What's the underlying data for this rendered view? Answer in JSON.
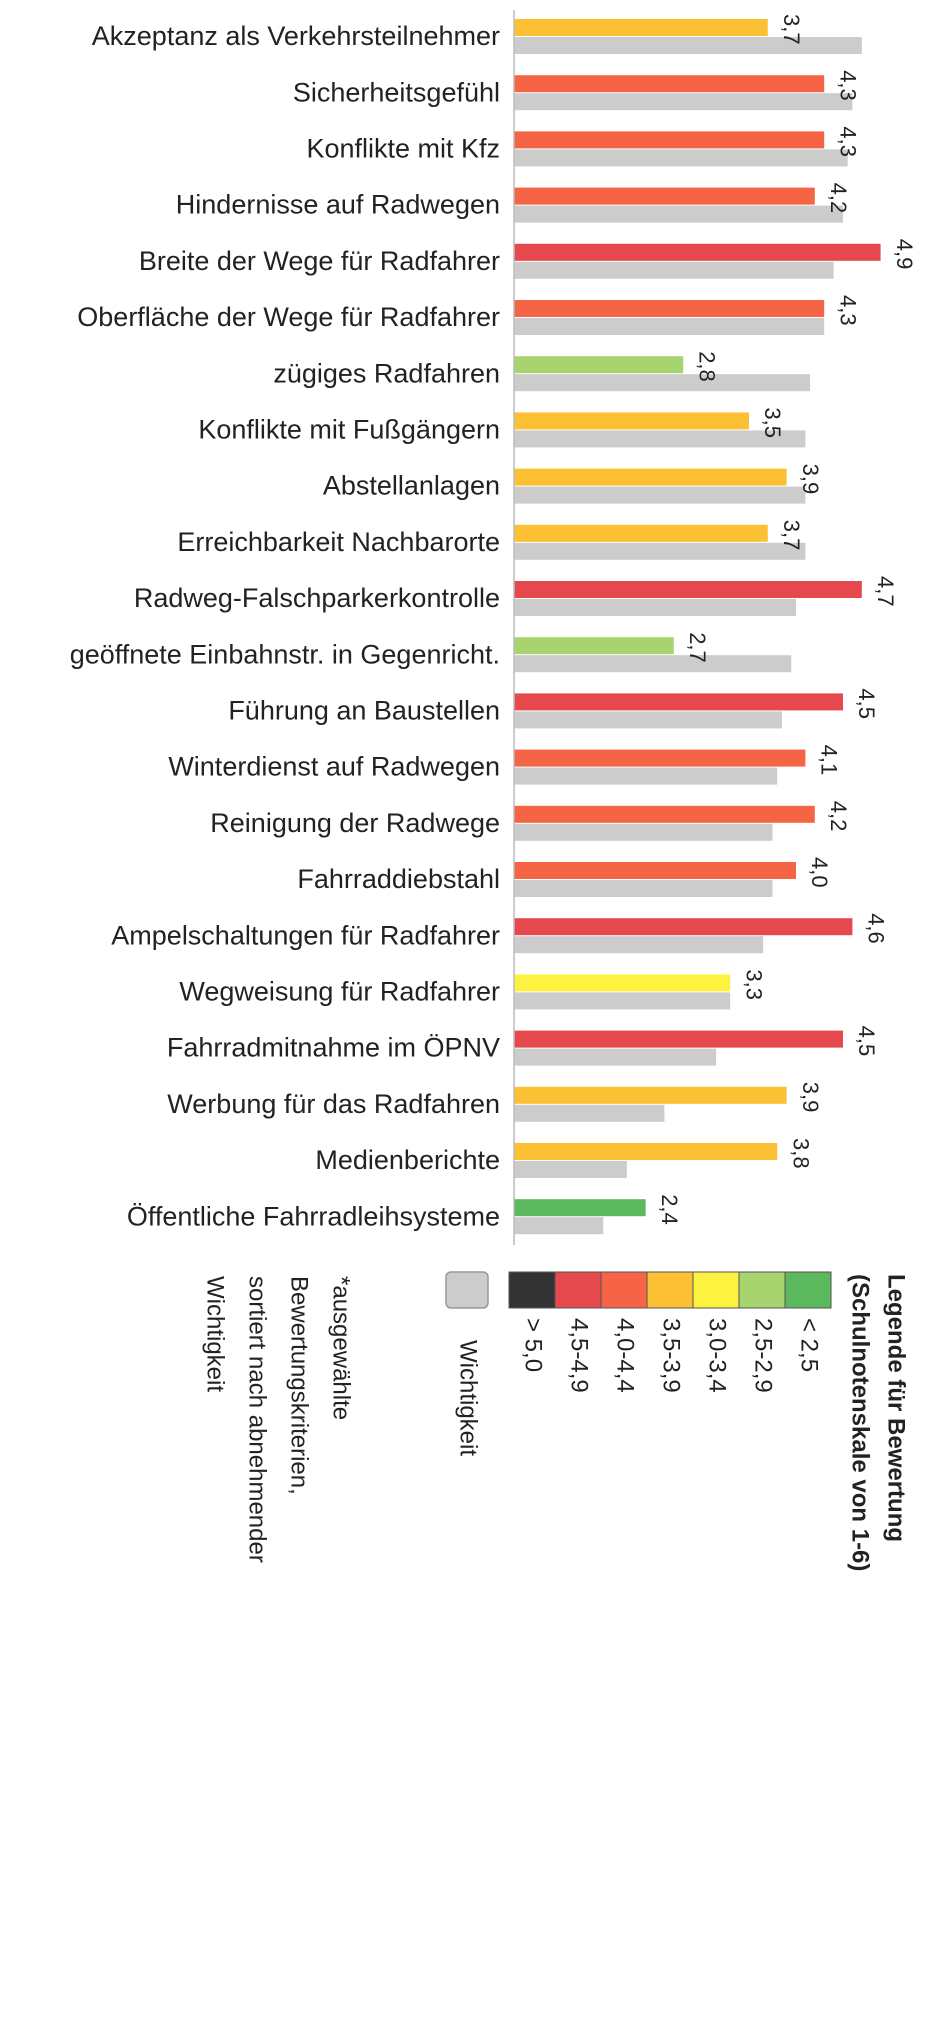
{
  "chart_data": {
    "type": "bar",
    "orientation": "horizontal",
    "categories": [
      "Akzeptanz als Verkehrsteilnehmer",
      "Sicherheitsgefühl",
      "Konflikte mit Kfz",
      "Hindernisse auf Radwegen",
      "Breite der Wege für Radfahrer",
      "Oberfläche der Wege für Radfahrer",
      "zügiges Radfahren",
      "Konflikte mit Fußgängern",
      "Abstellanlagen",
      "Erreichbarkeit Nachbarorte",
      "Radweg-Falschparkerkontrolle",
      "geöffnete Einbahnstr. in Gegenricht.",
      "Führung an Baustellen",
      "Winterdienst auf Radwegen",
      "Reinigung der Radwege",
      "Fahrraddiebstahl",
      "Ampelschaltungen für Radfahrer",
      "Wegweisung für Radfahrer",
      "Fahrradmitnahme im ÖPNV",
      "Werbung für das Radfahren",
      "Medienberichte",
      "Öffentliche Fahrradleihsysteme"
    ],
    "series": [
      {
        "values": [
          3.7,
          4.3,
          4.3,
          4.2,
          4.9,
          4.3,
          2.8,
          3.5,
          3.9,
          3.7,
          4.7,
          2.7,
          4.5,
          4.1,
          4.2,
          4.0,
          4.6,
          3.3,
          4.5,
          3.9,
          3.8,
          2.4
        ],
        "value_labels": [
          "3,7",
          "4,3",
          "4,3",
          "4,2",
          "4,9",
          "4,3",
          "2,8",
          "3,5",
          "3,9",
          "3,7",
          "4,7",
          "2,7",
          "4,5",
          "4,1",
          "4,2",
          "4,0",
          "4,6",
          "3,3",
          "4,5",
          "3,9",
          "3,8",
          "2,4"
        ],
        "colors": [
          "#fcc034",
          "#f56545",
          "#f56545",
          "#f56545",
          "#e5484d",
          "#f56545",
          "#a8d46f",
          "#fcc034",
          "#fcc034",
          "#fcc034",
          "#e5484d",
          "#a8d46f",
          "#e5484d",
          "#f56545",
          "#f56545",
          "#f56545",
          "#e5484d",
          "#fdf23f",
          "#e5484d",
          "#fcc034",
          "#fcc034",
          "#5cb85c"
        ]
      },
      {
        "name": "Wichtigkeit",
        "color": "#cccccc",
        "values": [
          4.7,
          4.6,
          4.55,
          4.5,
          4.4,
          4.3,
          4.15,
          4.1,
          4.1,
          4.1,
          4.0,
          3.95,
          3.85,
          3.8,
          3.75,
          3.75,
          3.65,
          3.3,
          3.15,
          2.6,
          2.2,
          1.95
        ]
      }
    ],
    "xlim": [
      1,
      6
    ],
    "legend": {
      "title": [
        "Legende für Bewertung",
        "(Schulnotenskale von 1-6)"
      ],
      "items": [
        {
          "label": "> 5,0",
          "color": "#333333"
        },
        {
          "label": "4,5-4,9",
          "color": "#e5484d"
        },
        {
          "label": "4,0-4,4",
          "color": "#f56545"
        },
        {
          "label": "3,5-3,9",
          "color": "#fcc034"
        },
        {
          "label": "3,0-3,4",
          "color": "#fdf23f"
        },
        {
          "label": "2,5-2,9",
          "color": "#a8d46f"
        },
        {
          "label": "< 2,5",
          "color": "#5cb85c"
        }
      ]
    },
    "footnote": [
      "*ausgewählte",
      "Bewertungskriterien,",
      "sortiert nach abnehmender",
      "Wichtigkeit"
    ]
  }
}
